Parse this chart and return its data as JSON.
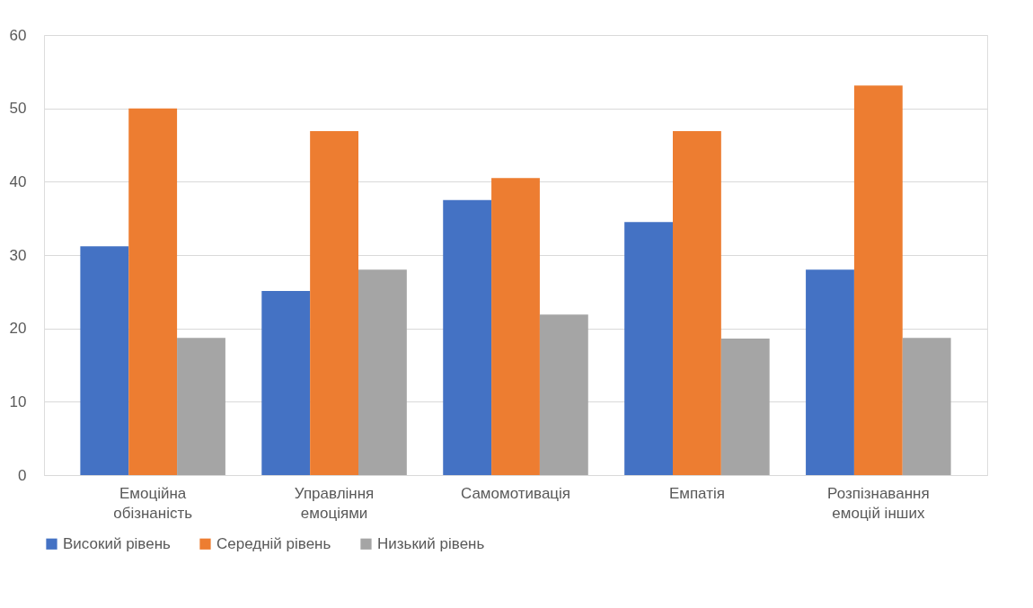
{
  "chart_data": {
    "type": "bar",
    "categories": [
      "Емоційна обізнаність",
      "Управління емоціями",
      "Самомотивація",
      "Емпатія",
      "Розпізнавання емоцій інших"
    ],
    "series": [
      {
        "name": "Високий рівень",
        "color": "#4472c4",
        "values": [
          31.2,
          25.1,
          37.5,
          34.5,
          28.0
        ]
      },
      {
        "name": "Середній рівень",
        "color": "#ed7d31",
        "values": [
          50.0,
          46.9,
          40.5,
          46.9,
          53.1
        ]
      },
      {
        "name": "Низький рівень",
        "color": "#a5a5a5",
        "values": [
          18.7,
          28.0,
          21.9,
          18.6,
          18.7
        ]
      }
    ],
    "ylim": [
      0,
      60
    ],
    "yticks": [
      0,
      10,
      20,
      30,
      40,
      50,
      60
    ],
    "grid": "y",
    "legend": "bottom"
  }
}
